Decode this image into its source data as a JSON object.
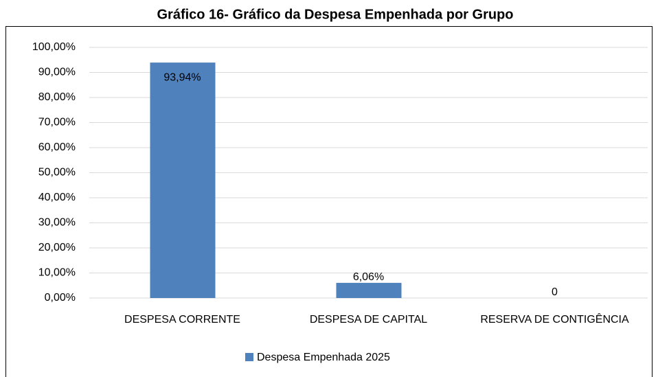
{
  "chart_data": {
    "type": "bar",
    "title": "Gráfico 16- Gráfico da Despesa Empenhada por Grupo",
    "categories": [
      "DESPESA CORRENTE",
      "DESPESA DE CAPITAL",
      "RESERVA DE CONTIGÊNCIA"
    ],
    "series": [
      {
        "name": "Despesa Empenhada 2025",
        "color": "#4f81bd",
        "values": [
          93.94,
          6.06,
          0
        ],
        "value_labels": [
          "93,94%",
          "6,06%",
          "0"
        ]
      }
    ],
    "ylim": [
      0,
      100
    ],
    "yticks": [
      {
        "value": 0,
        "label": "0,00%"
      },
      {
        "value": 10,
        "label": "10,00%"
      },
      {
        "value": 20,
        "label": "20,00%"
      },
      {
        "value": 30,
        "label": "30,00%"
      },
      {
        "value": 40,
        "label": "40,00%"
      },
      {
        "value": 50,
        "label": "50,00%"
      },
      {
        "value": 60,
        "label": "60,00%"
      },
      {
        "value": 70,
        "label": "70,00%"
      },
      {
        "value": 80,
        "label": "80,00%"
      },
      {
        "value": 90,
        "label": "90,00%"
      },
      {
        "value": 100,
        "label": "100,00%"
      }
    ],
    "grid": true,
    "legend": "bottom"
  }
}
